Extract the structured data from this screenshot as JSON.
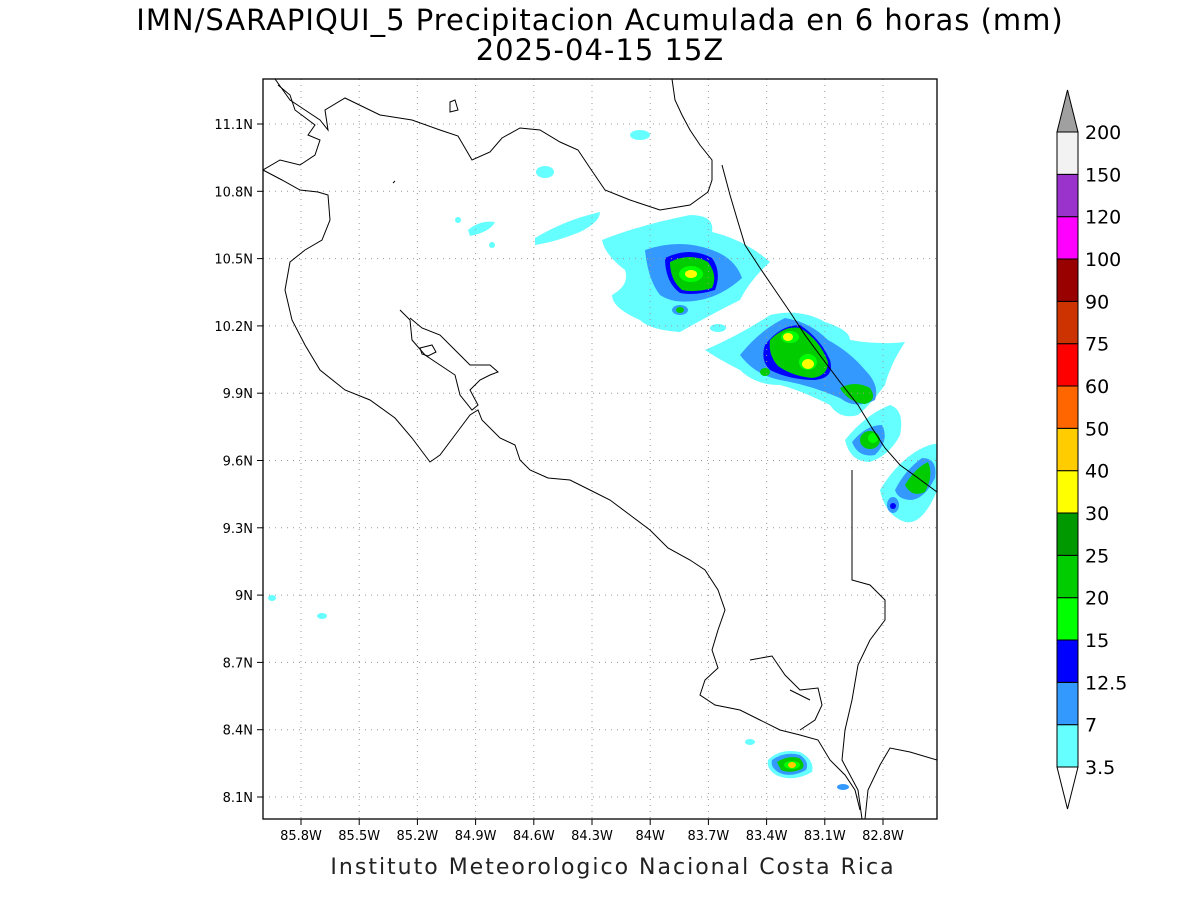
{
  "title_line1": "IMN/SARAPIQUI_5 Precipitacion Acumulada en 6 horas (mm)",
  "title_line2": "2025-04-15 15Z",
  "footer": "Instituto Meteorologico Nacional Costa Rica",
  "map": {
    "lon_labels": [
      "85.8W",
      "85.5W",
      "85.2W",
      "84.9W",
      "84.6W",
      "84.3W",
      "84W",
      "83.7W",
      "83.4W",
      "83.1W",
      "82.8W"
    ],
    "lat_labels": [
      "11.1N",
      "10.8N",
      "10.5N",
      "10.2N",
      "9.9N",
      "9.6N",
      "9.3N",
      "9N",
      "8.7N",
      "8.4N",
      "8.1N"
    ]
  },
  "colorbar": {
    "labels": [
      "3.5",
      "7",
      "12.5",
      "15",
      "20",
      "25",
      "30",
      "40",
      "50",
      "60",
      "75",
      "90",
      "100",
      "120",
      "150",
      "200"
    ],
    "colors": [
      "#66ffff",
      "#3399ff",
      "#0000ff",
      "#00ff00",
      "#00cc00",
      "#009900",
      "#ffff00",
      "#ffcc00",
      "#ff6600",
      "#ff0000",
      "#cc3300",
      "#990000",
      "#ff00ff",
      "#9933cc",
      "#f2f2f2",
      "#a0a0a0"
    ],
    "low_arrow_color": "#ffffff",
    "high_arrow_color": "#a0a0a0"
  }
}
